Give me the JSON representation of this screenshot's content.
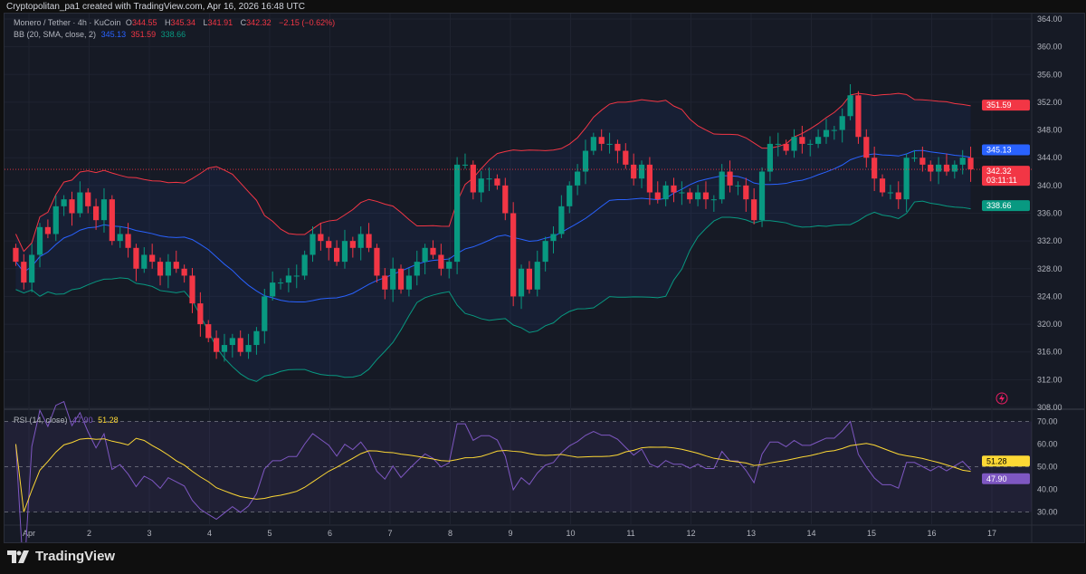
{
  "credit": "Cryptopolitan_pa1 created with TradingView.com, Apr 16, 2026 16:48 UTC",
  "legend": {
    "symbol": "Monero / Tether · 4h · KuCoin",
    "o_label": "O",
    "o": "344.55",
    "h_label": "H",
    "h": "345.34",
    "l_label": "L",
    "l": "341.91",
    "c_label": "C",
    "c": "342.32",
    "change": "−2.15 (−0.62%)",
    "bb": "BB (20, SMA, close, 2)",
    "bb_basis": "345.13",
    "bb_upper": "351.59",
    "bb_lower": "338.66",
    "rsi": "RSI (14, close)",
    "rsi_value": "47.90",
    "rsi_ma": "51.28"
  },
  "badges": {
    "upper": "351.59",
    "basis": "345.13",
    "last": "342.32",
    "countdown": "03:11:11",
    "lower": "338.66",
    "rsi_ma": "51.28",
    "rsi": "47.90"
  },
  "footer": {
    "brand": "TradingView"
  },
  "colors": {
    "up": "#089981",
    "down": "#f23645",
    "basis": "#2962ff",
    "upper": "#f23645",
    "lower": "#089981",
    "rsi": "#7e57c2",
    "rsi_ma": "#fdd835"
  },
  "chart_data": [
    {
      "type": "candlestick",
      "title": "Monero / Tether · 4h · KuCoin",
      "ylim": [
        308,
        364
      ],
      "y_ticks": [
        "364.00",
        "360.00",
        "356.00",
        "352.00",
        "348.00",
        "344.00",
        "340.00",
        "336.00",
        "332.00",
        "328.00",
        "324.00",
        "320.00",
        "316.00",
        "312.00",
        "308.00"
      ],
      "x_ticks": [
        "Apr",
        "2",
        "3",
        "4",
        "5",
        "6",
        "7",
        "8",
        "9",
        "10",
        "11",
        "12",
        "13",
        "14",
        "15",
        "16",
        "17"
      ],
      "closes": [
        329,
        326,
        330,
        334,
        333,
        337,
        338,
        336,
        339,
        337,
        335,
        338,
        332,
        333,
        331,
        328,
        330,
        329,
        327,
        329,
        328,
        327,
        323,
        320,
        318,
        316,
        317,
        318,
        316,
        317,
        319,
        324,
        326,
        326,
        327,
        327,
        330,
        333,
        332,
        331,
        329,
        332,
        331,
        333,
        331,
        327,
        325,
        328,
        325,
        327,
        329,
        331,
        330,
        328,
        329,
        343,
        343,
        339,
        341,
        341,
        340,
        336,
        324,
        328,
        325,
        329,
        332,
        333,
        337,
        340,
        342,
        345,
        347,
        346,
        346,
        345,
        343,
        341,
        343,
        339,
        338,
        340,
        339,
        339,
        338,
        339,
        338,
        338,
        342,
        340,
        340,
        338,
        335,
        342,
        346,
        346,
        345,
        347,
        346,
        346,
        347,
        348,
        348,
        350,
        353,
        347,
        344,
        341,
        339,
        339,
        338,
        344,
        344,
        343,
        342,
        343,
        342,
        343,
        344,
        342.32
      ],
      "first_open": 331,
      "grid": true
    },
    {
      "type": "line",
      "title": "RSI (14, close)",
      "ylim": [
        25,
        75
      ],
      "y_ticks": [
        "70.00",
        "60.00",
        "50.00",
        "40.00",
        "30.00"
      ],
      "bands": [
        30,
        70
      ]
    }
  ]
}
